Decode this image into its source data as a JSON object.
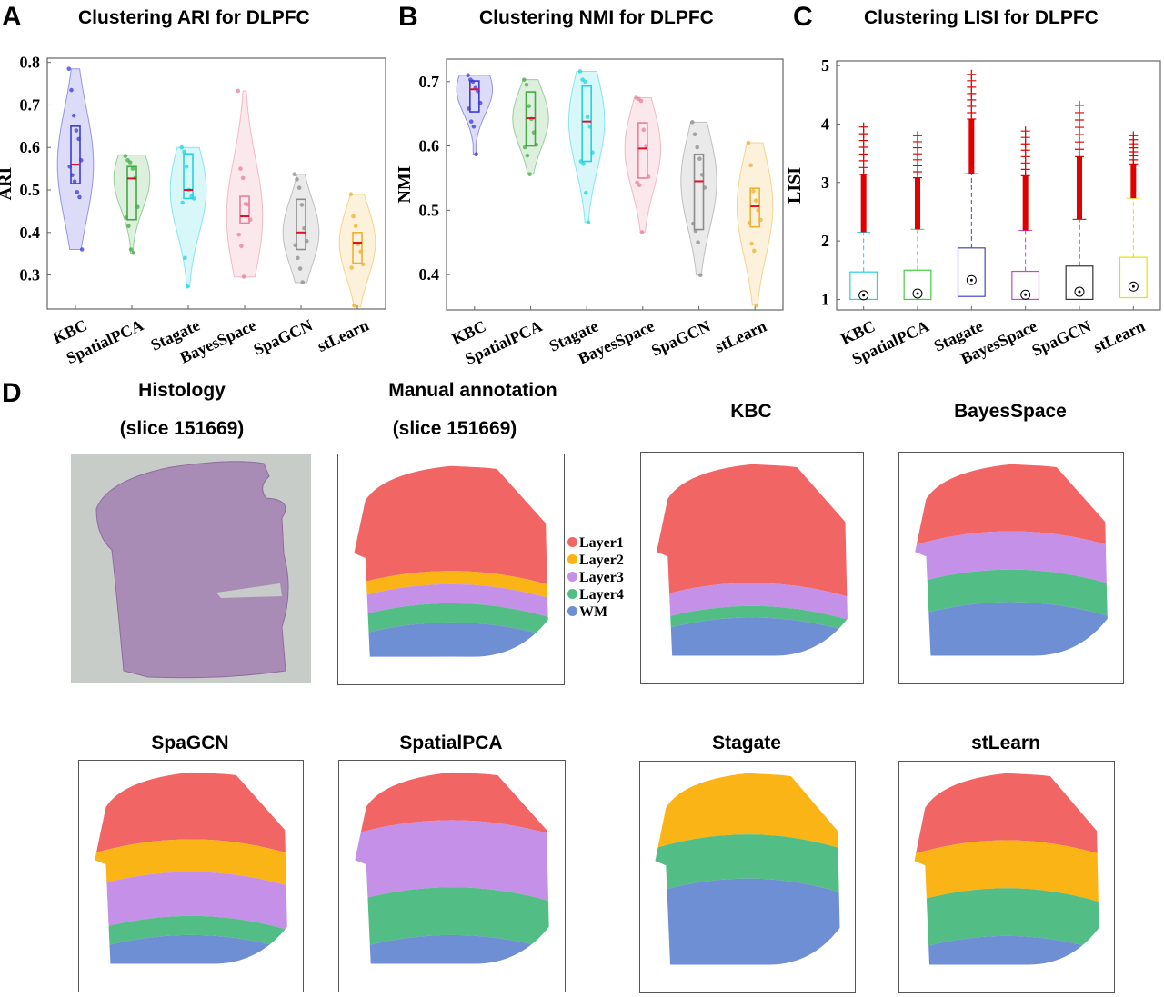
{
  "panels": {
    "A": {
      "letter": "A",
      "title": "Clustering ARI for DLPFC"
    },
    "B": {
      "letter": "B",
      "title": "Clustering NMI for DLPFC"
    },
    "C": {
      "letter": "C",
      "title": "Clustering LISI for DLPFC"
    },
    "D": {
      "letter": "D"
    }
  },
  "chart_data": [
    {
      "type": "violin",
      "title": "Clustering ARI for DLPFC",
      "ylabel": "ARI",
      "ylim": [
        0.22,
        0.81
      ],
      "yticks": [
        "0.3",
        "0.4",
        "0.5",
        "0.6",
        "0.7",
        "0.8"
      ],
      "categories": [
        "KBC",
        "SpatialPCA",
        "Stagate",
        "BayesSpace",
        "SpaGCN",
        "stLearn"
      ],
      "colors": [
        "#3b3bd6",
        "#44aa44",
        "#22d3e0",
        "#e8809a",
        "#8c8c8c",
        "#f0b030"
      ],
      "series": [
        {
          "name": "KBC",
          "min": 0.36,
          "max": 0.785,
          "q1": 0.515,
          "median": 0.56,
          "q3": 0.65,
          "points": [
            0.785,
            0.735,
            0.675,
            0.64,
            0.62,
            0.57,
            0.555,
            0.535,
            0.52,
            0.495,
            0.483,
            0.36
          ]
        },
        {
          "name": "SpatialPCA",
          "min": 0.35,
          "max": 0.582,
          "q1": 0.43,
          "median": 0.527,
          "q3": 0.555,
          "points": [
            0.58,
            0.57,
            0.565,
            0.55,
            0.528,
            0.46,
            0.435,
            0.415,
            0.36,
            0.352
          ]
        },
        {
          "name": "Stagate",
          "min": 0.272,
          "max": 0.6,
          "q1": 0.48,
          "median": 0.5,
          "q3": 0.585,
          "points": [
            0.6,
            0.59,
            0.555,
            0.5,
            0.485,
            0.48,
            0.47,
            0.34,
            0.273
          ]
        },
        {
          "name": "BayesSpace",
          "min": 0.295,
          "max": 0.733,
          "q1": 0.422,
          "median": 0.438,
          "q3": 0.485,
          "points": [
            0.733,
            0.55,
            0.528,
            0.467,
            0.466,
            0.43,
            0.395,
            0.368,
            0.296
          ]
        },
        {
          "name": "SpaGCN",
          "min": 0.282,
          "max": 0.537,
          "q1": 0.36,
          "median": 0.4,
          "q3": 0.478,
          "points": [
            0.537,
            0.525,
            0.505,
            0.465,
            0.41,
            0.38,
            0.37,
            0.34,
            0.315,
            0.283
          ]
        },
        {
          "name": "stLearn",
          "min": 0.225,
          "max": 0.49,
          "q1": 0.328,
          "median": 0.376,
          "q3": 0.4,
          "points": [
            0.49,
            0.438,
            0.415,
            0.372,
            0.355,
            0.325,
            0.317,
            0.228
          ]
        }
      ]
    },
    {
      "type": "violin",
      "title": "Clustering NMI for DLPFC",
      "ylabel": "NMI",
      "ylim": [
        0.345,
        0.735
      ],
      "yticks": [
        "0.4",
        "0.5",
        "0.6",
        "0.7"
      ],
      "categories": [
        "KBC",
        "SpatialPCA",
        "Stagate",
        "BayesSpace",
        "SpaGCN",
        "stLearn"
      ],
      "colors": [
        "#3b3bd6",
        "#44aa44",
        "#22d3e0",
        "#e8809a",
        "#8c8c8c",
        "#f0b030"
      ],
      "series": [
        {
          "name": "KBC",
          "min": 0.587,
          "max": 0.71,
          "q1": 0.653,
          "median": 0.688,
          "q3": 0.701,
          "points": [
            0.71,
            0.703,
            0.7,
            0.69,
            0.685,
            0.667,
            0.658,
            0.638,
            0.63,
            0.587
          ]
        },
        {
          "name": "SpatialPCA",
          "min": 0.556,
          "max": 0.703,
          "q1": 0.6,
          "median": 0.643,
          "q3": 0.684,
          "points": [
            0.703,
            0.695,
            0.662,
            0.642,
            0.621,
            0.602,
            0.598,
            0.585,
            0.556
          ]
        },
        {
          "name": "Stagate",
          "min": 0.481,
          "max": 0.716,
          "q1": 0.576,
          "median": 0.638,
          "q3": 0.693,
          "points": [
            0.716,
            0.703,
            0.7,
            0.645,
            0.63,
            0.59,
            0.576,
            0.572,
            0.527,
            0.481
          ]
        },
        {
          "name": "BayesSpace",
          "min": 0.466,
          "max": 0.675,
          "q1": 0.55,
          "median": 0.596,
          "q3": 0.636,
          "points": [
            0.675,
            0.673,
            0.67,
            0.625,
            0.6,
            0.552,
            0.543,
            0.539,
            0.466
          ]
        },
        {
          "name": "SpaGCN",
          "min": 0.399,
          "max": 0.637,
          "q1": 0.47,
          "median": 0.545,
          "q3": 0.587,
          "points": [
            0.637,
            0.618,
            0.598,
            0.58,
            0.555,
            0.535,
            0.479,
            0.468,
            0.45,
            0.399
          ]
        },
        {
          "name": "stLearn",
          "min": 0.352,
          "max": 0.605,
          "q1": 0.474,
          "median": 0.506,
          "q3": 0.534,
          "points": [
            0.605,
            0.57,
            0.53,
            0.515,
            0.5,
            0.485,
            0.48,
            0.448,
            0.437,
            0.352
          ]
        }
      ]
    },
    {
      "type": "box",
      "title": "Clustering LISI for DLPFC",
      "ylabel": "LISI",
      "ylim": [
        0.82,
        5.08
      ],
      "yticks": [
        "1",
        "2",
        "3",
        "4",
        "5"
      ],
      "categories": [
        "KBC",
        "SpatialPCA",
        "Stagate",
        "BayesSpace",
        "SpaGCN",
        "stLearn"
      ],
      "colors": [
        "#22d3e0",
        "#44cc44",
        "#4444cc",
        "#cc44cc",
        "#333333",
        "#e8e000"
      ],
      "outlier_color": "#e00000",
      "series": [
        {
          "name": "KBC",
          "whisker_low": 1.0,
          "q1": 1.0,
          "median": 1.07,
          "q3": 1.47,
          "whisker_high": 2.15,
          "outlier_max": 3.95
        },
        {
          "name": "SpatialPCA",
          "whisker_low": 1.0,
          "q1": 1.0,
          "median": 1.1,
          "q3": 1.5,
          "whisker_high": 2.2,
          "outlier_max": 3.8
        },
        {
          "name": "Stagate",
          "whisker_low": 1.0,
          "q1": 1.05,
          "median": 1.33,
          "q3": 1.88,
          "whisker_high": 3.15,
          "outlier_max": 4.85
        },
        {
          "name": "BayesSpace",
          "whisker_low": 1.0,
          "q1": 1.0,
          "median": 1.08,
          "q3": 1.48,
          "whisker_high": 2.18,
          "outlier_max": 3.88
        },
        {
          "name": "SpaGCN",
          "whisker_low": 1.0,
          "q1": 1.0,
          "median": 1.13,
          "q3": 1.57,
          "whisker_high": 2.37,
          "outlier_max": 4.32
        },
        {
          "name": "stLearn",
          "whisker_low": 1.0,
          "q1": 1.03,
          "median": 1.22,
          "q3": 1.72,
          "whisker_high": 2.73,
          "outlier_max": 3.8
        }
      ]
    }
  ],
  "spatial": {
    "histology": {
      "title_line1": "Histology",
      "title_line2": "(slice 151669)"
    },
    "manual": {
      "title_line1": "Manual annotation",
      "title_line2": "(slice 151669)"
    },
    "legend": [
      {
        "label": "Layer1",
        "color": "#f26565"
      },
      {
        "label": "Layer2",
        "color": "#fbb416"
      },
      {
        "label": "Layer3",
        "color": "#c490e8"
      },
      {
        "label": "Layer4",
        "color": "#52bd84"
      },
      {
        "label": "WM",
        "color": "#6e8fd4"
      }
    ],
    "maps": [
      {
        "key": "KBC",
        "title": "KBC"
      },
      {
        "key": "BayesSpace",
        "title": "BayesSpace"
      },
      {
        "key": "SpaGCN",
        "title": "SpaGCN"
      },
      {
        "key": "SpatialPCA",
        "title": "SpatialPCA"
      },
      {
        "key": "Stagate",
        "title": "Stagate"
      },
      {
        "key": "stLearn",
        "title": "stLearn"
      }
    ]
  }
}
